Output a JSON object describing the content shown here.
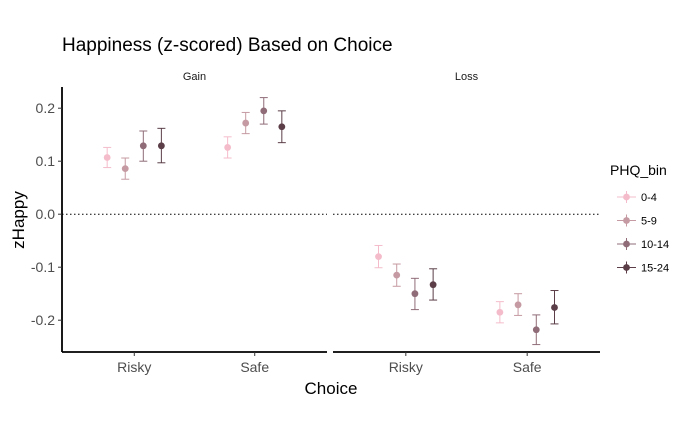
{
  "chart_data": {
    "type": "scatter",
    "title": "Happiness  (z-scored) Based on Choice",
    "xlabel": "Choice",
    "ylabel": "zHappy",
    "ylim": [
      -0.26,
      0.24
    ],
    "yticks": [
      -0.2,
      -0.1,
      0.0,
      0.1,
      0.2
    ],
    "ytick_labels": [
      "-0.2",
      "-0.1",
      "0.0",
      "0.1",
      "0.2"
    ],
    "categories": [
      "Risky",
      "Safe"
    ],
    "facets": [
      "Gain",
      "Loss"
    ],
    "reference_line": 0.0,
    "grid": false,
    "legend": {
      "title": "PHQ_bin",
      "position": "right"
    },
    "series": [
      {
        "name": "0-4",
        "color": "#f4bccb",
        "Gain": {
          "Risky": [
            0.107,
            0.088,
            0.126
          ],
          "Safe": [
            0.126,
            0.106,
            0.146
          ]
        },
        "Loss": {
          "Risky": [
            -0.08,
            -0.101,
            -0.059
          ],
          "Safe": [
            -0.185,
            -0.205,
            -0.165
          ]
        }
      },
      {
        "name": "5-9",
        "color": "#c59aa2",
        "Gain": {
          "Risky": [
            0.086,
            0.066,
            0.106
          ],
          "Safe": [
            0.172,
            0.152,
            0.192
          ]
        },
        "Loss": {
          "Risky": [
            -0.115,
            -0.136,
            -0.094
          ],
          "Safe": [
            -0.171,
            -0.191,
            -0.15
          ]
        }
      },
      {
        "name": "10-14",
        "color": "#8f6c77",
        "Gain": {
          "Risky": [
            0.129,
            0.1,
            0.157
          ],
          "Safe": [
            0.195,
            0.17,
            0.22
          ]
        },
        "Loss": {
          "Risky": [
            -0.15,
            -0.18,
            -0.121
          ],
          "Safe": [
            -0.218,
            -0.246,
            -0.19
          ]
        }
      },
      {
        "name": "15-24",
        "color": "#5b3e48",
        "Gain": {
          "Risky": [
            0.129,
            0.097,
            0.162
          ],
          "Safe": [
            0.165,
            0.135,
            0.195
          ]
        },
        "Loss": {
          "Risky": [
            -0.133,
            -0.162,
            -0.103
          ],
          "Safe": [
            -0.176,
            -0.207,
            -0.144
          ]
        }
      }
    ]
  }
}
